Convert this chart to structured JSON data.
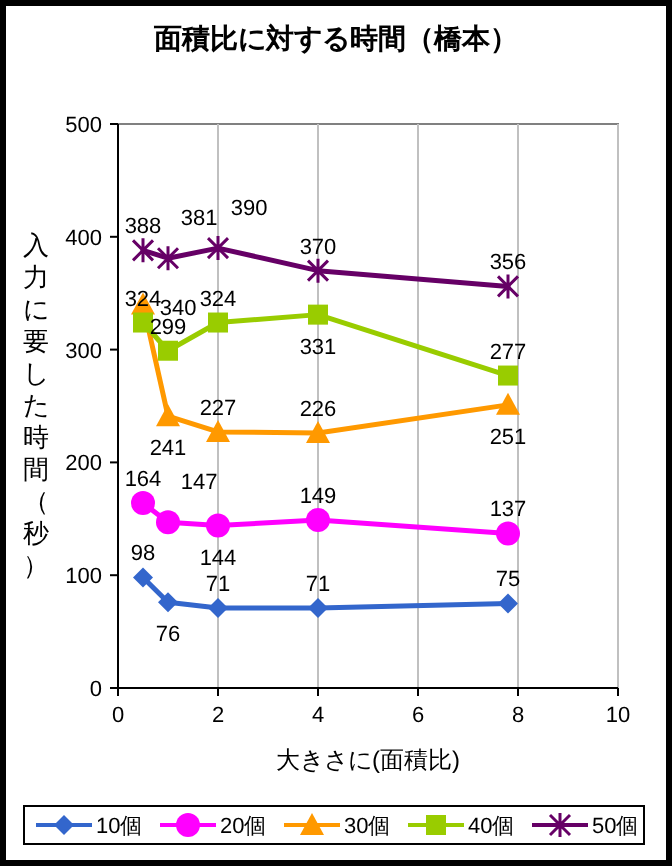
{
  "chart_data": {
    "type": "line",
    "title": "面積比に対する時間（橋本）",
    "xlabel": "大きさに(面積比)",
    "ylabel": "入力に要した時間（秒）",
    "x": [
      0.5,
      1,
      2,
      4,
      7.8
    ],
    "xlim": [
      0,
      10
    ],
    "xticks": [
      0,
      2,
      4,
      6,
      8,
      10
    ],
    "ylim": [
      0,
      500
    ],
    "yticks": [
      0,
      100,
      200,
      300,
      400,
      500
    ],
    "grid": "x",
    "legend": "bottom",
    "data_labels": true,
    "line_style": "solid",
    "series": [
      {
        "name": "10個",
        "color": "#3366cc",
        "marker": "diamond",
        "values": [
          98,
          76,
          71,
          71,
          75
        ]
      },
      {
        "name": "20個",
        "color": "#ff00ff",
        "marker": "circle",
        "values": [
          164,
          147,
          144,
          149,
          137
        ]
      },
      {
        "name": "30個",
        "color": "#ff9900",
        "marker": "triangle",
        "values": [
          340,
          241,
          227,
          226,
          251
        ]
      },
      {
        "name": "40個",
        "color": "#99cc00",
        "marker": "square",
        "values": [
          324,
          299,
          324,
          331,
          277
        ]
      },
      {
        "name": "50個",
        "color": "#660066",
        "marker": "cross",
        "values": [
          388,
          381,
          390,
          370,
          356
        ]
      }
    ]
  }
}
